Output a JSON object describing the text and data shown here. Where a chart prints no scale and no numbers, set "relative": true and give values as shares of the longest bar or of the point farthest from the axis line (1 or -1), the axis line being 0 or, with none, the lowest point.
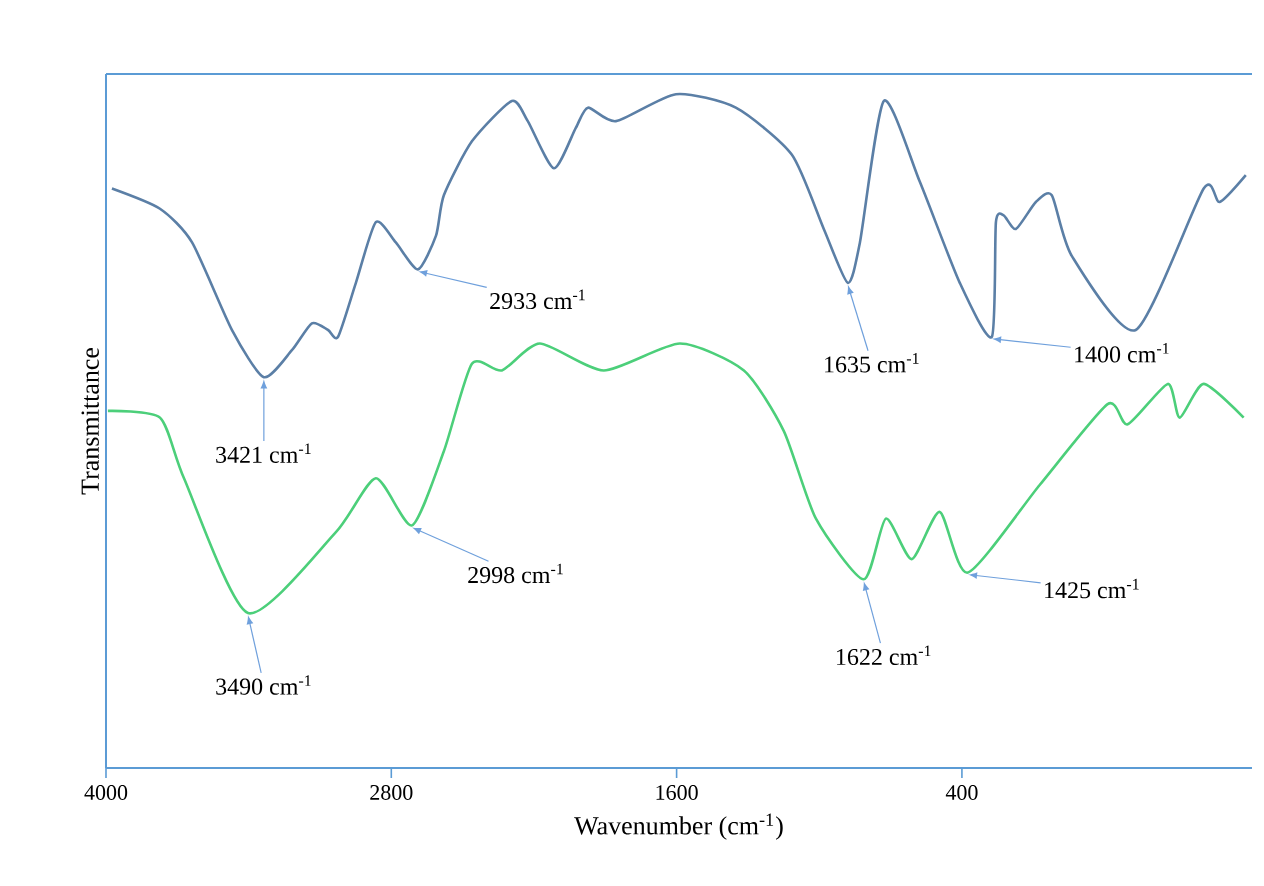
{
  "chart_data": {
    "type": "line",
    "relative": true,
    "xlabel": "Wavenumber (cm$^{-1}$)",
    "ylabel": "Transmittance",
    "xlim": [
      4000,
      -820
    ],
    "xticks": [
      4000,
      2800,
      1600,
      400
    ],
    "grid": false,
    "marker": "none",
    "line_style": "solid",
    "series": [
      {
        "color": "#5b7fa6",
        "x": [
          3975,
          3773,
          3638,
          3470,
          3336,
          3218,
          3134,
          3066,
          3024,
          2949,
          2865,
          2781,
          2688,
          2612,
          2579,
          2461,
          2293,
          2226,
          2116,
          2024,
          1973,
          1855,
          1603,
          1351,
          1115,
          981,
          880,
          829,
          728,
          577,
          409,
          274,
          257,
          224,
          173,
          89,
          22,
          -62,
          -331,
          -617,
          -684,
          -794
        ],
        "values": [
          0.86,
          0.83,
          0.78,
          0.65,
          0.58,
          0.62,
          0.66,
          0.65,
          0.64,
          0.72,
          0.81,
          0.78,
          0.74,
          0.79,
          0.85,
          0.93,
          0.99,
          0.96,
          0.89,
          0.95,
          0.98,
          0.96,
          1,
          0.98,
          0.91,
          0.8,
          0.72,
          0.78,
          0.99,
          0.87,
          0.72,
          0.64,
          0.81,
          0.82,
          0.8,
          0.84,
          0.85,
          0.76,
          0.65,
          0.86,
          0.84,
          0.88
        ]
      },
      {
        "color": "#4ccf7a",
        "x": [
          3992,
          3773,
          3672,
          3403,
          3033,
          2865,
          2713,
          2579,
          2461,
          2335,
          2175,
          1906,
          1586,
          1317,
          1149,
          1014,
          813,
          720,
          611,
          493,
          375,
          73,
          -213,
          -297,
          -466,
          -516,
          -617,
          -785
        ],
        "values": [
          0.53,
          0.52,
          0.43,
          0.23,
          0.35,
          0.43,
          0.36,
          0.47,
          0.6,
          0.59,
          0.63,
          0.59,
          0.63,
          0.59,
          0.5,
          0.37,
          0.28,
          0.37,
          0.31,
          0.38,
          0.29,
          0.42,
          0.54,
          0.51,
          0.57,
          0.52,
          0.57,
          0.52
        ]
      }
    ],
    "annotations": [
      {
        "text": "3421 cm$^{-1}$",
        "x": 3336,
        "y": 0.58
      },
      {
        "text": "2933 cm$^{-1}$",
        "x": 2688,
        "y": 0.74
      },
      {
        "text": "1635 cm$^{-1}$",
        "x": 880,
        "y": 0.72
      },
      {
        "text": "1400 cm$^{-1}$",
        "x": 274,
        "y": 0.64
      },
      {
        "text": "3490 cm$^{-1}$",
        "x": 3403,
        "y": 0.23
      },
      {
        "text": "2998 cm$^{-1}$",
        "x": 2713,
        "y": 0.36
      },
      {
        "text": "1622 cm$^{-1}$",
        "x": 813,
        "y": 0.28
      },
      {
        "text": "1425 cm$^{-1}$",
        "x": 375,
        "y": 0.29
      }
    ]
  }
}
